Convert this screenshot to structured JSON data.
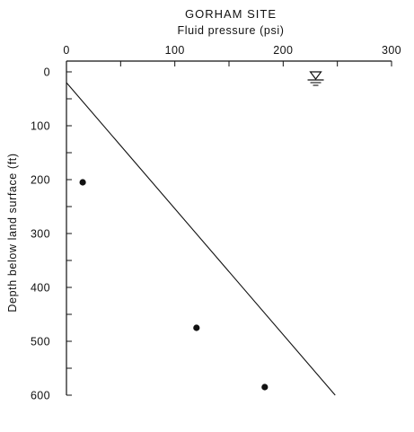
{
  "chart_data": {
    "type": "scatter",
    "title": "GORHAM SITE",
    "xlabel": "Fluid pressure (psi)",
    "ylabel": "Depth below land surface (ft)",
    "xlim": [
      0,
      300
    ],
    "ylim": [
      0,
      600
    ],
    "y_inverted": true,
    "x_axis_position": "top",
    "x_ticks": [
      "0",
      "100",
      "200",
      "300"
    ],
    "y_ticks": [
      "0",
      "100",
      "200",
      "300",
      "400",
      "500",
      "600"
    ],
    "grid": false,
    "points": [
      {
        "x": 15,
        "y": 205
      },
      {
        "x": 120,
        "y": 475
      },
      {
        "x": 183,
        "y": 585
      }
    ],
    "reference_line": {
      "x": [
        0,
        248
      ],
      "y": [
        20,
        600
      ]
    },
    "water_table_symbol": {
      "x": 230,
      "y": 15
    }
  }
}
